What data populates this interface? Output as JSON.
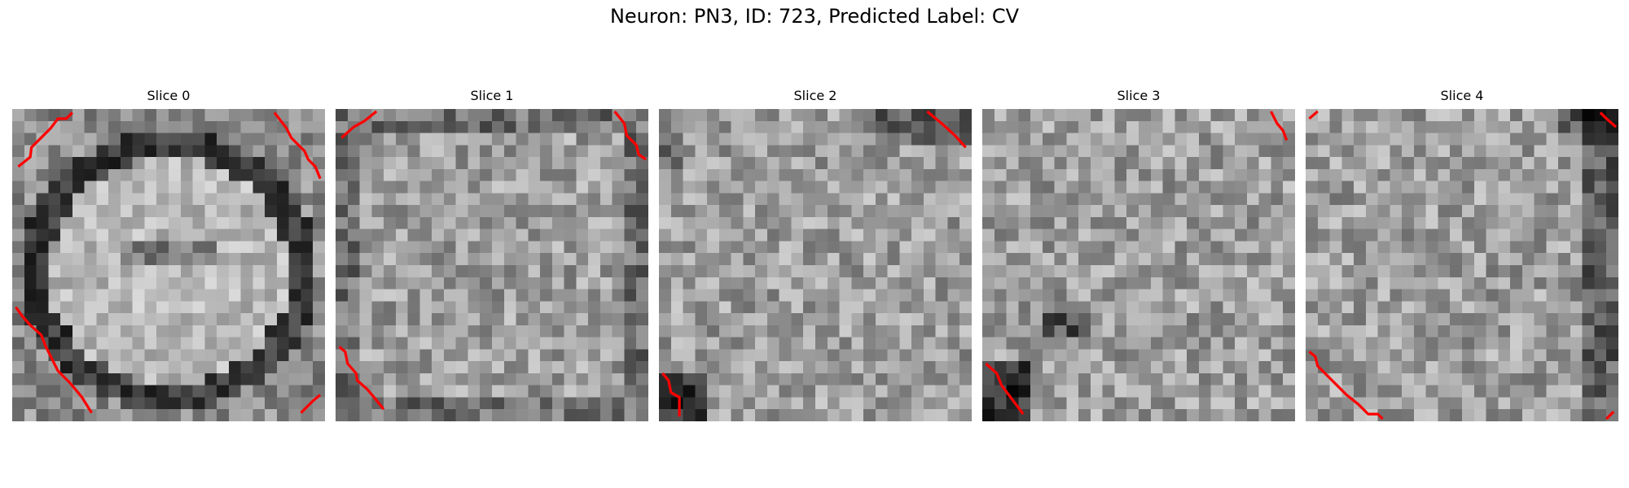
{
  "figure": {
    "title": "Neuron: PN3, ID: 723, Predicted Label: CV"
  },
  "grid_size": 26,
  "contour_color": "#ff0000",
  "colormap": "gray",
  "slices": [
    {
      "title": "Slice 0",
      "contour_paths": [
        [
          [
            0.5,
            4.8
          ],
          [
            1.5,
            4.0
          ],
          [
            1.6,
            3.2
          ],
          [
            2.4,
            2.4
          ],
          [
            3.2,
            1.6
          ],
          [
            3.8,
            0.8
          ],
          [
            4.5,
            0.8
          ],
          [
            5.0,
            0.3
          ]
        ],
        [
          [
            21.8,
            0.3
          ],
          [
            22.8,
            1.6
          ],
          [
            23.2,
            2.4
          ],
          [
            23.6,
            2.8
          ],
          [
            24.3,
            3.5
          ],
          [
            24.6,
            4.2
          ],
          [
            25.2,
            4.8
          ],
          [
            25.6,
            5.8
          ]
        ],
        [
          [
            0.3,
            16.5
          ],
          [
            0.8,
            17.2
          ],
          [
            1.5,
            18.0
          ],
          [
            2.4,
            18.8
          ],
          [
            2.8,
            19.8
          ],
          [
            3.3,
            20.8
          ],
          [
            3.8,
            21.8
          ],
          [
            4.8,
            22.8
          ],
          [
            5.8,
            24.0
          ],
          [
            6.6,
            25.3
          ]
        ],
        [
          [
            24.0,
            25.3
          ],
          [
            25.0,
            24.3
          ],
          [
            25.6,
            23.8
          ]
        ]
      ],
      "description": "bright oval cell body ringed by dark membrane"
    },
    {
      "title": "Slice 1",
      "contour_paths": [
        [
          [
            0.5,
            2.4
          ],
          [
            1.5,
            1.5
          ],
          [
            2.4,
            1.0
          ],
          [
            3.4,
            0.2
          ]
        ],
        [
          [
            23.2,
            0.2
          ],
          [
            24.0,
            1.2
          ],
          [
            24.2,
            2.2
          ],
          [
            25.0,
            3.0
          ],
          [
            25.2,
            3.8
          ],
          [
            25.8,
            4.2
          ]
        ],
        [
          [
            0.3,
            19.8
          ],
          [
            0.8,
            20.2
          ],
          [
            1.0,
            21.2
          ],
          [
            1.7,
            22.0
          ],
          [
            1.8,
            22.6
          ],
          [
            2.6,
            23.3
          ],
          [
            3.2,
            24.0
          ],
          [
            4.0,
            25.0
          ]
        ]
      ],
      "description": "mottled grayscale texture"
    },
    {
      "title": "Slice 2",
      "contour_paths": [
        [
          [
            22.3,
            0.2
          ],
          [
            23.5,
            1.2
          ],
          [
            24.6,
            2.2
          ],
          [
            25.5,
            3.2
          ]
        ],
        [
          [
            0.3,
            22.0
          ],
          [
            0.8,
            22.6
          ],
          [
            1.0,
            23.6
          ],
          [
            1.7,
            24.0
          ],
          [
            1.7,
            25.6
          ]
        ]
      ],
      "description": "mottled grayscale texture with dark lower-left corner"
    },
    {
      "title": "Slice 3",
      "contour_paths": [
        [
          [
            24.0,
            0.2
          ],
          [
            24.5,
            1.2
          ],
          [
            25.0,
            1.8
          ],
          [
            25.3,
            2.6
          ]
        ],
        [
          [
            0.3,
            21.2
          ],
          [
            1.2,
            22.0
          ],
          [
            1.6,
            23.0
          ],
          [
            2.2,
            23.8
          ],
          [
            2.8,
            24.6
          ],
          [
            3.4,
            25.4
          ]
        ]
      ],
      "description": "grainy grayscale texture with dark patch bottom-left"
    },
    {
      "title": "Slice 4",
      "contour_paths": [
        [
          [
            0.3,
            0.8
          ],
          [
            1.0,
            0.2
          ]
        ],
        [
          [
            24.5,
            0.3
          ],
          [
            25.0,
            0.8
          ],
          [
            25.8,
            1.5
          ]
        ],
        [
          [
            0.3,
            20.2
          ],
          [
            0.8,
            20.6
          ],
          [
            1.0,
            21.4
          ],
          [
            1.8,
            22.2
          ],
          [
            2.6,
            23.0
          ],
          [
            3.4,
            23.8
          ],
          [
            4.4,
            24.6
          ],
          [
            5.2,
            25.4
          ],
          [
            6.0,
            25.4
          ],
          [
            6.4,
            25.8
          ]
        ],
        [
          [
            25.0,
            25.8
          ],
          [
            25.6,
            25.2
          ]
        ]
      ],
      "description": "grainy grayscale texture with dark edges"
    }
  ]
}
